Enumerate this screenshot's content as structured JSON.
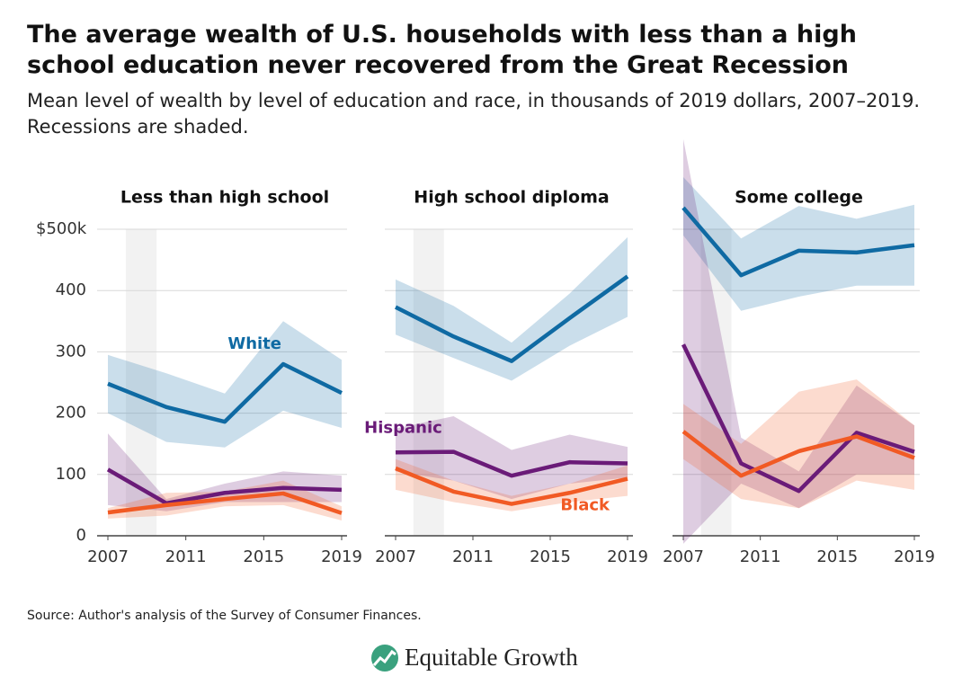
{
  "title": "The average wealth of U.S. households with less than a high school education never recovered from the Great Recession",
  "subtitle": "Mean level of wealth by level of education and race, in thousands of 2019 dollars, 2007–2019. Recessions are shaded.",
  "source": "Source: Author's analysis of the Survey of Consumer Finances.",
  "brand": "Equitable Growth",
  "chart_data": [
    {
      "type": "line",
      "title": "Less than high school",
      "x": [
        2007,
        2010,
        2013,
        2016,
        2019
      ],
      "xlim": [
        2007,
        2019
      ],
      "xticks": [
        2007,
        2011,
        2015,
        2019
      ],
      "ylim": [
        0,
        500
      ],
      "yticks": [
        0,
        100,
        200,
        300,
        400,
        {
          "value": 500,
          "label": "$500k"
        }
      ],
      "grid": true,
      "recessions": [
        [
          2007.92,
          2009.5
        ]
      ],
      "series": [
        {
          "name": "White",
          "color": "#0f6aa3",
          "values": [
            248,
            210,
            186,
            280,
            233
          ],
          "upper": [
            295,
            265,
            232,
            350,
            287
          ],
          "lower": [
            200,
            153,
            144,
            204,
            176
          ]
        },
        {
          "color": "#6a1b78",
          "values": [
            108,
            53,
            70,
            78,
            75
          ],
          "upper": [
            167,
            60,
            85,
            105,
            98
          ],
          "lower": [
            50,
            40,
            55,
            55,
            55
          ]
        },
        {
          "color": "#f15a24",
          "values": [
            38,
            50,
            60,
            69,
            37
          ],
          "upper": [
            45,
            70,
            72,
            90,
            48
          ],
          "lower": [
            28,
            33,
            48,
            50,
            25
          ]
        }
      ]
    },
    {
      "type": "line",
      "title": "High school diploma",
      "x": [
        2007,
        2010,
        2013,
        2016,
        2019
      ],
      "xlim": [
        2007,
        2019
      ],
      "xticks": [
        2007,
        2011,
        2015,
        2019
      ],
      "ylim": [
        0,
        500
      ],
      "yticks": [
        0,
        100,
        200,
        300,
        400,
        500
      ],
      "grid": true,
      "recessions": [
        [
          2007.92,
          2009.5
        ]
      ],
      "series": [
        {
          "color": "#0f6aa3",
          "values": [
            373,
            325,
            285,
            355,
            423
          ],
          "upper": [
            418,
            375,
            315,
            395,
            487
          ],
          "lower": [
            328,
            290,
            253,
            310,
            357
          ]
        },
        {
          "name": "Hispanic",
          "color": "#6a1b78",
          "values": [
            136,
            137,
            98,
            120,
            118
          ],
          "upper": [
            175,
            195,
            140,
            165,
            145
          ],
          "lower": [
            105,
            90,
            60,
            85,
            95
          ]
        },
        {
          "name": "Black",
          "color": "#f15a24",
          "values": [
            110,
            72,
            52,
            70,
            93
          ],
          "upper": [
            125,
            90,
            65,
            85,
            115
          ],
          "lower": [
            75,
            55,
            40,
            55,
            65
          ]
        }
      ]
    },
    {
      "type": "line",
      "title": "Some college",
      "x": [
        2007,
        2010,
        2013,
        2016,
        2019
      ],
      "xlim": [
        2007,
        2019
      ],
      "xticks": [
        2007,
        2011,
        2015,
        2019
      ],
      "ylim": [
        0,
        500
      ],
      "yticks": [
        0,
        100,
        200,
        300,
        400,
        500
      ],
      "grid": true,
      "recessions": [
        [
          2007.92,
          2009.5
        ]
      ],
      "series": [
        {
          "color": "#0f6aa3",
          "values": [
            535,
            425,
            465,
            462,
            474
          ],
          "upper": [
            585,
            485,
            538,
            517,
            540
          ],
          "lower": [
            490,
            367,
            390,
            408,
            408
          ]
        },
        {
          "color": "#6a1b78",
          "values": [
            312,
            118,
            73,
            168,
            137
          ],
          "upper": [
            647,
            160,
            105,
            245,
            180
          ],
          "lower": [
            -13,
            85,
            45,
            100,
            100
          ]
        },
        {
          "color": "#f15a24",
          "values": [
            170,
            98,
            138,
            162,
            127
          ],
          "upper": [
            215,
            150,
            235,
            255,
            180
          ],
          "lower": [
            125,
            60,
            45,
            90,
            75
          ]
        }
      ]
    }
  ]
}
